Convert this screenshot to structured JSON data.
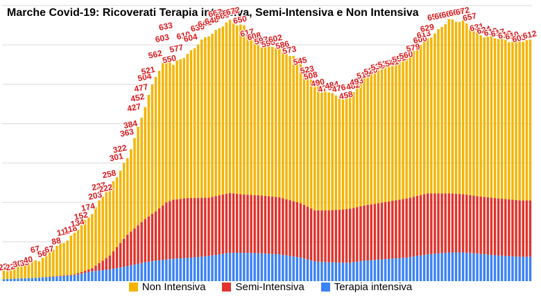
{
  "title": "Marche Covid-19: Ricoverati Terapia intensiva, Semi-Intensiva e Non Intensiva",
  "chart_data": {
    "type": "bar",
    "stacked": true,
    "ylim": [
      0,
      700
    ],
    "grid": true,
    "legend_position": "bottom",
    "series": [
      {
        "name": "Non Intensiva",
        "color": "#f4b400"
      },
      {
        "name": "Semi-Intensiva",
        "color": "#e0332c"
      },
      {
        "name": "Terapia intensiva",
        "color": "#3b82f6"
      }
    ],
    "control_points": [
      {
        "i": 0,
        "t": 25,
        "ti": 5,
        "si": 0
      },
      {
        "i": 10,
        "t": 55,
        "ti": 9,
        "si": 0
      },
      {
        "i": 20,
        "t": 120,
        "ti": 15,
        "si": 2
      },
      {
        "i": 25,
        "t": 175,
        "ti": 25,
        "si": 8
      },
      {
        "i": 30,
        "t": 240,
        "ti": 30,
        "si": 35
      },
      {
        "i": 35,
        "t": 310,
        "ti": 38,
        "si": 80
      },
      {
        "i": 40,
        "t": 445,
        "ti": 48,
        "si": 110
      },
      {
        "i": 43,
        "t": 520,
        "ti": 52,
        "si": 125
      },
      {
        "i": 46,
        "t": 570,
        "ti": 55,
        "si": 145
      },
      {
        "i": 48,
        "t": 548,
        "ti": 57,
        "si": 150
      },
      {
        "i": 52,
        "t": 578,
        "ti": 59,
        "si": 152
      },
      {
        "i": 58,
        "t": 625,
        "ti": 64,
        "si": 148
      },
      {
        "i": 64,
        "t": 660,
        "ti": 72,
        "si": 152
      },
      {
        "i": 68,
        "t": 648,
        "ti": 72,
        "si": 148
      },
      {
        "i": 72,
        "t": 600,
        "ti": 71,
        "si": 147
      },
      {
        "i": 78,
        "t": 592,
        "ti": 68,
        "si": 145
      },
      {
        "i": 84,
        "t": 558,
        "ti": 60,
        "si": 138
      },
      {
        "i": 88,
        "t": 500,
        "ti": 50,
        "si": 130
      },
      {
        "i": 92,
        "t": 480,
        "ti": 48,
        "si": 132
      },
      {
        "i": 96,
        "t": 465,
        "ti": 47,
        "si": 135
      },
      {
        "i": 98,
        "t": 470,
        "ti": 47,
        "si": 137
      },
      {
        "i": 102,
        "t": 520,
        "ti": 52,
        "si": 140
      },
      {
        "i": 108,
        "t": 545,
        "ti": 56,
        "si": 145
      },
      {
        "i": 114,
        "t": 570,
        "ti": 60,
        "si": 150
      },
      {
        "i": 120,
        "t": 615,
        "ti": 68,
        "si": 155
      },
      {
        "i": 126,
        "t": 662,
        "ti": 73,
        "si": 150
      },
      {
        "i": 130,
        "t": 662,
        "ti": 73,
        "si": 148
      },
      {
        "i": 134,
        "t": 628,
        "ti": 70,
        "si": 146
      },
      {
        "i": 140,
        "t": 615,
        "ti": 65,
        "si": 145
      },
      {
        "i": 146,
        "t": 608,
        "ti": 62,
        "si": 143
      },
      {
        "i": 149,
        "t": 612,
        "ti": 62,
        "si": 143
      }
    ],
    "data_labels": [
      {
        "i": 0,
        "v": 22
      },
      {
        "i": 2,
        "v": 22
      },
      {
        "i": 4,
        "v": 30
      },
      {
        "i": 6,
        "v": 33
      },
      {
        "i": 7,
        "v": 40
      },
      {
        "i": 9,
        "v": 67
      },
      {
        "i": 11,
        "v": 56
      },
      {
        "i": 13,
        "v": 67
      },
      {
        "i": 15,
        "v": 88
      },
      {
        "i": 17,
        "v": 111
      },
      {
        "i": 19,
        "v": 118
      },
      {
        "i": 21,
        "v": 134
      },
      {
        "i": 22,
        "v": 152
      },
      {
        "i": 24,
        "v": 174
      },
      {
        "i": 26,
        "v": 203
      },
      {
        "i": 27,
        "v": 227
      },
      {
        "i": 29,
        "v": 222
      },
      {
        "i": 30,
        "v": 258
      },
      {
        "i": 32,
        "v": 301
      },
      {
        "i": 33,
        "v": 322
      },
      {
        "i": 35,
        "v": 363
      },
      {
        "i": 36,
        "v": 384
      },
      {
        "i": 37,
        "v": 427
      },
      {
        "i": 38,
        "v": 452
      },
      {
        "i": 39,
        "v": 477
      },
      {
        "i": 40,
        "v": 504
      },
      {
        "i": 41,
        "v": 521
      },
      {
        "i": 43,
        "v": 562
      },
      {
        "i": 45,
        "v": 603
      },
      {
        "i": 46,
        "v": 633
      },
      {
        "i": 47,
        "v": 550
      },
      {
        "i": 49,
        "v": 577
      },
      {
        "i": 51,
        "v": 610
      },
      {
        "i": 53,
        "v": 604
      },
      {
        "i": 55,
        "v": 630
      },
      {
        "i": 57,
        "v": 641
      },
      {
        "i": 59,
        "v": 648
      },
      {
        "i": 60,
        "v": 667
      },
      {
        "i": 62,
        "v": 660
      },
      {
        "i": 64,
        "v": 669
      },
      {
        "i": 65,
        "v": 672
      },
      {
        "i": 67,
        "v": 650
      },
      {
        "i": 69,
        "v": 617
      },
      {
        "i": 71,
        "v": 608
      },
      {
        "i": 73,
        "v": 597
      },
      {
        "i": 75,
        "v": 590
      },
      {
        "i": 77,
        "v": 602
      },
      {
        "i": 79,
        "v": 586
      },
      {
        "i": 81,
        "v": 573
      },
      {
        "i": 84,
        "v": 545
      },
      {
        "i": 86,
        "v": 523
      },
      {
        "i": 87,
        "v": 508
      },
      {
        "i": 89,
        "v": 490
      },
      {
        "i": 91,
        "v": 476
      },
      {
        "i": 93,
        "v": 484
      },
      {
        "i": 95,
        "v": 476
      },
      {
        "i": 97,
        "v": 458
      },
      {
        "i": 99,
        "v": 482
      },
      {
        "i": 100,
        "v": 493
      },
      {
        "i": 102,
        "v": 510
      },
      {
        "i": 104,
        "v": 520
      },
      {
        "i": 106,
        "v": 531
      },
      {
        "i": 108,
        "v": 538
      },
      {
        "i": 110,
        "v": 541
      },
      {
        "i": 112,
        "v": 551
      },
      {
        "i": 114,
        "v": 560
      },
      {
        "i": 116,
        "v": 579
      },
      {
        "i": 118,
        "v": 600
      },
      {
        "i": 119,
        "v": 613
      },
      {
        "i": 120,
        "v": 629
      },
      {
        "i": 122,
        "v": 658
      },
      {
        "i": 124,
        "v": 661
      },
      {
        "i": 126,
        "v": 665
      },
      {
        "i": 128,
        "v": 669
      },
      {
        "i": 130,
        "v": 672
      },
      {
        "i": 132,
        "v": 657
      },
      {
        "i": 134,
        "v": 631
      },
      {
        "i": 136,
        "v": 624
      },
      {
        "i": 138,
        "v": 619
      },
      {
        "i": 140,
        "v": 617
      },
      {
        "i": 142,
        "v": 612
      },
      {
        "i": 144,
        "v": 610
      },
      {
        "i": 146,
        "v": 603
      },
      {
        "i": 149,
        "v": 612
      }
    ]
  }
}
